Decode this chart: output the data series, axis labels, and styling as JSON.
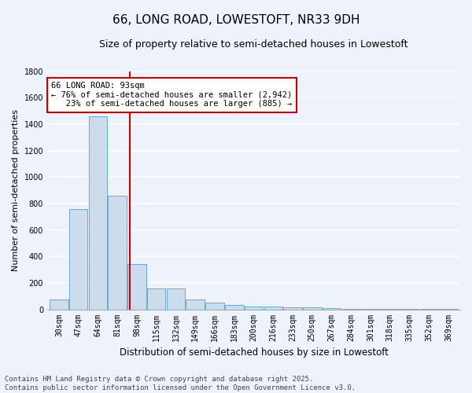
{
  "title": "66, LONG ROAD, LOWESTOFT, NR33 9DH",
  "subtitle": "Size of property relative to semi-detached houses in Lowestoft",
  "xlabel": "Distribution of semi-detached houses by size in Lowestoft",
  "ylabel": "Number of semi-detached properties",
  "categories": [
    "30sqm",
    "47sqm",
    "64sqm",
    "81sqm",
    "98sqm",
    "115sqm",
    "132sqm",
    "149sqm",
    "166sqm",
    "183sqm",
    "200sqm",
    "216sqm",
    "233sqm",
    "250sqm",
    "267sqm",
    "284sqm",
    "301sqm",
    "318sqm",
    "335sqm",
    "352sqm",
    "369sqm"
  ],
  "values": [
    75,
    760,
    1460,
    860,
    340,
    160,
    155,
    75,
    50,
    35,
    20,
    20,
    15,
    15,
    10,
    5,
    2,
    2,
    2,
    2,
    5
  ],
  "bar_color": "#ccdcec",
  "bar_edge_color": "#6aaad4",
  "vline_color": "#cc0000",
  "vline_x_index": 3.65,
  "annotation_text": "66 LONG ROAD: 93sqm\n← 76% of semi-detached houses are smaller (2,942)\n   23% of semi-detached houses are larger (885) →",
  "annotation_box_color": "#ffffff",
  "annotation_box_edge": "#cc0000",
  "ylim": [
    0,
    1800
  ],
  "yticks": [
    0,
    200,
    400,
    600,
    800,
    1000,
    1200,
    1400,
    1600,
    1800
  ],
  "footnote": "Contains HM Land Registry data © Crown copyright and database right 2025.\nContains public sector information licensed under the Open Government Licence v3.0.",
  "bg_color": "#eef2fb",
  "grid_color": "#ffffff",
  "title_fontsize": 11,
  "subtitle_fontsize": 9,
  "xlabel_fontsize": 8.5,
  "ylabel_fontsize": 8,
  "tick_fontsize": 7,
  "footnote_fontsize": 6.5,
  "annotation_fontsize": 7.5
}
